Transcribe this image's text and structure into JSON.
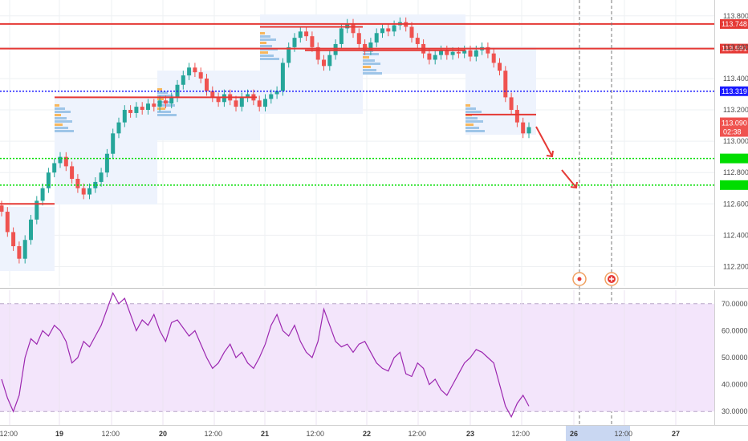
{
  "chart_data": [
    {
      "type": "candlestick",
      "panel": "price",
      "ylim": [
        112.1,
        113.85
      ],
      "y_ticks": [
        "113.800",
        "113.600",
        "113.400",
        "113.200",
        "113.000",
        "112.800",
        "112.600",
        "112.400",
        "112.200"
      ],
      "grid": true,
      "horizontal_levels": [
        {
          "value": 113.748,
          "label": "113.748",
          "color": "#e53935",
          "style": "solid"
        },
        {
          "value": 113.591,
          "label": "113.591",
          "color": "#e53935",
          "style": "solid"
        },
        {
          "value": 113.319,
          "label": "113.319",
          "color": "#1a1aff",
          "style": "dotted"
        },
        {
          "value": 112.89,
          "label": "",
          "color": "#00dd00",
          "style": "dotted"
        },
        {
          "value": 112.72,
          "label": "",
          "color": "#00dd00",
          "style": "dotted"
        }
      ],
      "last_price": {
        "value": "113.090",
        "countdown": "02:38",
        "color": "#ef5350"
      },
      "up_color": "#26a69a",
      "down_color": "#ef5350",
      "closes": [
        112.55,
        112.42,
        112.33,
        112.25,
        112.37,
        112.5,
        112.62,
        112.7,
        112.8,
        112.86,
        112.9,
        112.84,
        112.76,
        112.7,
        112.66,
        112.7,
        112.74,
        112.8,
        112.92,
        113.05,
        113.12,
        113.2,
        113.18,
        113.22,
        113.2,
        113.24,
        113.22,
        113.26,
        113.24,
        113.28,
        113.36,
        113.42,
        113.47,
        113.44,
        113.4,
        113.32,
        113.28,
        113.25,
        113.3,
        113.26,
        113.22,
        113.28,
        113.3,
        113.26,
        113.22,
        113.27,
        113.3,
        113.32,
        113.5,
        113.6,
        113.66,
        113.7,
        113.67,
        113.6,
        113.52,
        113.48,
        113.55,
        113.62,
        113.72,
        113.75,
        113.69,
        113.62,
        113.58,
        113.63,
        113.69,
        113.72,
        113.7,
        113.74,
        113.76,
        113.73,
        113.66,
        113.62,
        113.56,
        113.52,
        113.55,
        113.58,
        113.55,
        113.57,
        113.56,
        113.58,
        113.54,
        113.58,
        113.6,
        113.56,
        113.5,
        113.45,
        113.28,
        113.2,
        113.12,
        113.05,
        113.09
      ],
      "annotations": [
        "red arrow",
        "red arrow",
        "event marker",
        "event marker"
      ]
    },
    {
      "type": "line",
      "panel": "oscillator",
      "ylim": [
        25,
        75
      ],
      "band": [
        30,
        70
      ],
      "y_ticks": [
        "70.0000",
        "60.0000",
        "50.0000",
        "40.0000",
        "30.0000"
      ],
      "series": [
        {
          "color": "#9c27b0",
          "values": [
            42,
            35,
            30,
            36,
            50,
            57,
            55,
            60,
            58,
            62,
            60,
            56,
            48,
            50,
            56,
            54,
            58,
            62,
            68,
            74,
            70,
            72,
            66,
            60,
            64,
            62,
            66,
            60,
            56,
            63,
            64,
            61,
            58,
            60,
            55,
            50,
            46,
            48,
            52,
            55,
            50,
            52,
            48,
            46,
            50,
            55,
            62,
            66,
            60,
            58,
            62,
            56,
            52,
            50,
            56,
            68,
            62,
            56,
            54,
            55,
            52,
            55,
            56,
            52,
            48,
            46,
            45,
            50,
            52,
            44,
            43,
            48,
            46,
            40,
            42,
            38,
            36,
            40,
            44,
            48,
            50,
            53,
            52,
            50,
            48,
            40,
            32,
            28,
            33,
            36,
            32
          ]
        }
      ]
    }
  ],
  "x_axis": {
    "labels": [
      {
        "text": "12:00",
        "bold": false
      },
      {
        "text": "19",
        "bold": true
      },
      {
        "text": "12:00",
        "bold": false
      },
      {
        "text": "20",
        "bold": true
      },
      {
        "text": "12:00",
        "bold": false
      },
      {
        "text": "21",
        "bold": true
      },
      {
        "text": "12:00",
        "bold": false
      },
      {
        "text": "22",
        "bold": true
      },
      {
        "text": "12:00",
        "bold": false
      },
      {
        "text": "23",
        "bold": true
      },
      {
        "text": "12:00",
        "bold": false
      },
      {
        "text": "26",
        "bold": true
      },
      {
        "text": "12:00",
        "bold": false
      },
      {
        "text": "27",
        "bold": true
      }
    ],
    "highlight_color": "#c9d7f2"
  }
}
